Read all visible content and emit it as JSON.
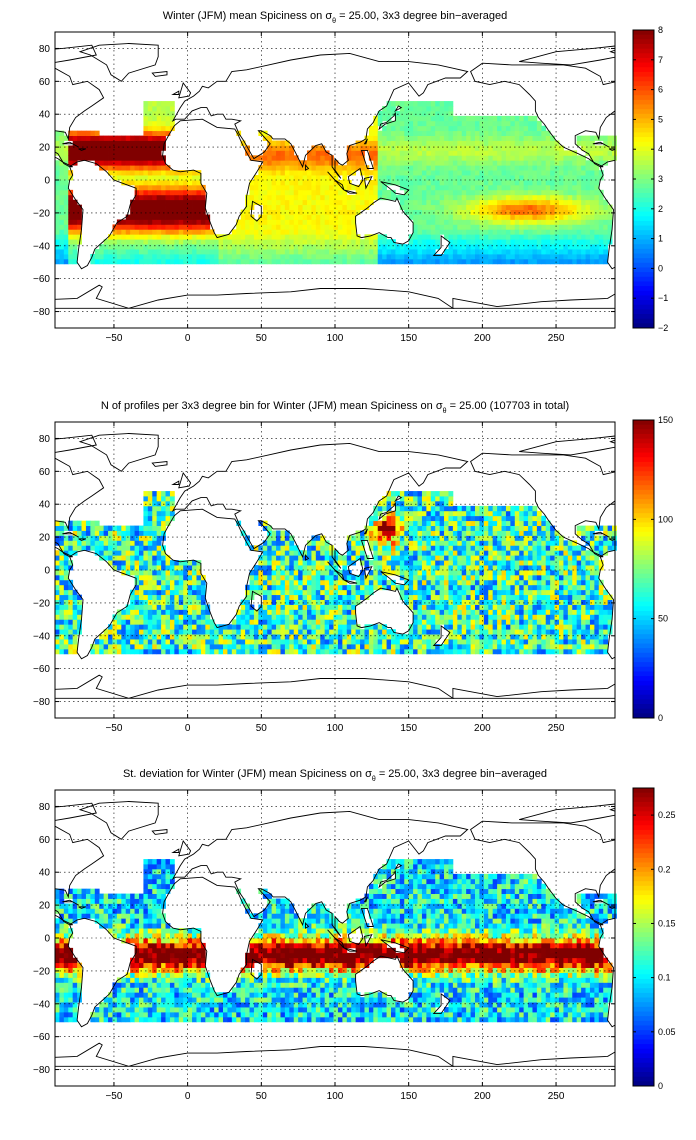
{
  "chart_data": [
    {
      "type": "heatmap",
      "title_pre": "Winter (JFM) mean Spiciness on ",
      "title_sym": "σ",
      "title_sub": "θ",
      "title_post": " = 25.00, 3x3 degree bin−averaged",
      "xticks": [
        "−50",
        "0",
        "50",
        "100",
        "150",
        "200",
        "250"
      ],
      "yticks": [
        "80",
        "60",
        "40",
        "20",
        "0",
        "−20",
        "−40",
        "−60",
        "−80"
      ],
      "colorbar_ticks": [
        "8",
        "7",
        "6",
        "5",
        "4",
        "3",
        "2",
        "1",
        "0",
        "−1",
        "−2"
      ],
      "xlim": [
        -90,
        290
      ],
      "ylim": [
        -90,
        90
      ],
      "clim": [
        -2,
        8
      ],
      "colormap": "jet",
      "grid": true
    },
    {
      "type": "heatmap",
      "title_pre": "N of profiles per 3x3 degree bin for Winter (JFM) mean Spiciness on ",
      "title_sym": "σ",
      "title_sub": "θ",
      "title_post": " = 25.00 (107703 in total)",
      "xticks": [
        "−50",
        "0",
        "50",
        "100",
        "150",
        "200",
        "250"
      ],
      "yticks": [
        "80",
        "60",
        "40",
        "20",
        "0",
        "−20",
        "−40",
        "−60",
        "−80"
      ],
      "colorbar_ticks": [
        "150",
        "100",
        "50",
        "0"
      ],
      "xlim": [
        -90,
        290
      ],
      "ylim": [
        -90,
        90
      ],
      "clim": [
        0,
        150
      ],
      "colormap": "jet",
      "grid": true
    },
    {
      "type": "heatmap",
      "title_pre": "St. deviation for Winter (JFM) mean Spiciness on ",
      "title_sym": "σ",
      "title_sub": "θ",
      "title_post": " = 25.00, 3x3 degree bin−averaged",
      "xticks": [
        "−50",
        "0",
        "50",
        "100",
        "150",
        "200",
        "250"
      ],
      "yticks": [
        "80",
        "60",
        "40",
        "20",
        "0",
        "−20",
        "−40",
        "−60",
        "−80"
      ],
      "colorbar_ticks": [
        "0.25",
        "0.2",
        "0.15",
        "0.1",
        "0.05",
        "0"
      ],
      "xlim": [
        -90,
        290
      ],
      "ylim": [
        -90,
        90
      ],
      "clim": [
        0,
        0.275
      ],
      "colormap": "jet",
      "grid": true
    }
  ]
}
